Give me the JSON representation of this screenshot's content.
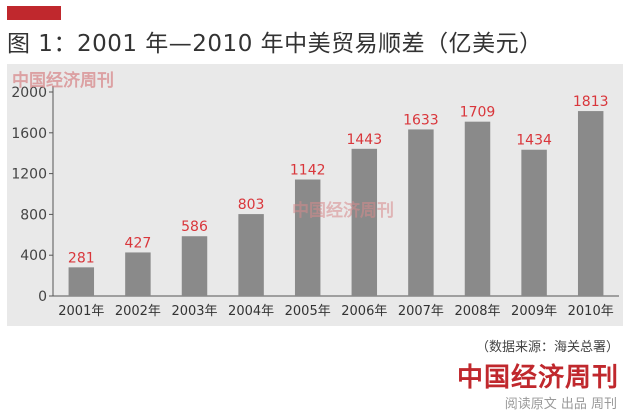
{
  "header": {
    "title": "图 1：2001 年—2010 年中美贸易顺差（亿美元）"
  },
  "colors": {
    "accent": "#c0282d",
    "bar": "#8a8a8a",
    "panel": "#e9e9e9",
    "label": "#d9363b"
  },
  "watermark": {
    "top": "中国经济周刊",
    "middle": "中国经济周刊"
  },
  "chart_data": {
    "type": "bar",
    "categories": [
      "2001年",
      "2002年",
      "2003年",
      "2004年",
      "2005年",
      "2006年",
      "2007年",
      "2008年",
      "2009年",
      "2010年"
    ],
    "values": [
      281,
      427,
      586,
      803,
      1142,
      1443,
      1633,
      1709,
      1434,
      1813
    ],
    "data_labels": [
      "281",
      "427",
      "586",
      "803",
      "1142",
      "1443",
      "1633",
      "1709",
      "1434",
      "1813"
    ],
    "yticks": [
      "0",
      "400",
      "800",
      "1200",
      "1600",
      "2000"
    ],
    "ytick_values": [
      0,
      400,
      800,
      1200,
      1600,
      2000
    ],
    "ylim": [
      0,
      2000
    ],
    "grid": false,
    "legend": "none"
  },
  "footer": {
    "source": "（数据来源：海关总署）",
    "brand": "中国经济周刊",
    "sub": "阅读原文 出品 周刊"
  }
}
